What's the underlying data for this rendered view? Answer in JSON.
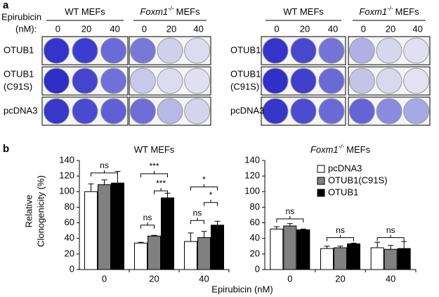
{
  "panel_a": {
    "label": "a",
    "dose_label": [
      "Epirubicin",
      "(nM):"
    ],
    "groups": [
      {
        "title": {
          "text": "WT MEFs"
        },
        "doses": [
          "0",
          "20",
          "40"
        ]
      },
      {
        "title": {
          "gene": "Foxm1",
          "sup": "-/-",
          "text": "MEFs"
        },
        "doses": [
          "0",
          "20",
          "40"
        ]
      },
      {
        "title": {
          "text": "WT MEFs"
        },
        "doses": [
          "0",
          "20",
          "40"
        ]
      },
      {
        "title": {
          "gene": "Foxm1",
          "sup": "-/-",
          "text": "MEFs"
        },
        "doses": [
          "0",
          "20",
          "40"
        ]
      }
    ],
    "rows": [
      [
        "OTUB1"
      ],
      [
        "OTUB1",
        "(C91S)"
      ],
      [
        "pcDNA3"
      ]
    ]
  },
  "panel_b": {
    "label": "b",
    "xlabel": "Epirubicin (nM)",
    "ylabel": [
      "Relative",
      "Clonogenicity (%)"
    ]
  },
  "chart_data": [
    {
      "type": "bar",
      "title": {
        "text": "WT MEFs"
      },
      "categories": [
        "0",
        "20",
        "40"
      ],
      "series": [
        {
          "name": "pcDNA3",
          "color": "#ffffff",
          "values": [
            100,
            34,
            36
          ],
          "errors": [
            10,
            1,
            11
          ]
        },
        {
          "name": "OTUB1(C91S)",
          "color": "#808080",
          "values": [
            109,
            43,
            41
          ],
          "errors": [
            6,
            1,
            8
          ]
        },
        {
          "name": "OTUB1",
          "color": "#000000",
          "values": [
            111,
            92,
            57
          ],
          "errors": [
            15,
            6,
            5
          ]
        }
      ],
      "ylim": [
        0,
        140
      ],
      "yticks": [
        0,
        20,
        40,
        60,
        80,
        100,
        120,
        140
      ],
      "annotations": [
        "ns",
        "***",
        "***",
        "ns",
        "*",
        "*",
        "ns"
      ]
    },
    {
      "type": "bar",
      "title": {
        "gene": "Foxm1",
        "sup": "-/-",
        "text": "MEFs"
      },
      "categories": [
        "0",
        "20",
        "40"
      ],
      "series": [
        {
          "name": "pcDNA3",
          "color": "#ffffff",
          "values": [
            52,
            27,
            28
          ],
          "errors": [
            3,
            3,
            7
          ]
        },
        {
          "name": "OTUB1(C91S)",
          "color": "#808080",
          "values": [
            56,
            28,
            26
          ],
          "errors": [
            3,
            2,
            5
          ]
        },
        {
          "name": "OTUB1",
          "color": "#000000",
          "values": [
            51,
            33,
            27
          ],
          "errors": [
            1,
            1,
            9
          ]
        }
      ],
      "ylim": [
        0,
        140
      ],
      "yticks": [
        0,
        20,
        40,
        60,
        80,
        100,
        120,
        140
      ],
      "legend": "upper right",
      "annotations": [
        "ns",
        "ns",
        "ns"
      ]
    }
  ]
}
